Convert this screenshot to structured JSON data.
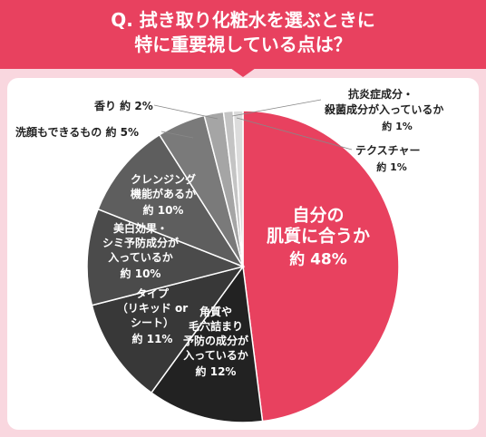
{
  "header": {
    "title_line1": "Q. 拭き取り化粧水を選ぶときに",
    "title_line2": "特に重要視している点は？"
  },
  "chart_data": {
    "type": "pie",
    "unit": "%",
    "slices": [
      {
        "lines": [
          "自分の",
          "肌質に合うか"
        ],
        "value_text": "約 48%",
        "value": 48,
        "color": "#e8415f",
        "text_color": "#ffffff"
      },
      {
        "lines": [
          "角質や",
          "毛穴詰まり",
          "予防の成分が",
          "入っているか"
        ],
        "value_text": "約 12%",
        "value": 12,
        "color": "#222222",
        "text_color": "#ffffff"
      },
      {
        "lines": [
          "タイプ",
          "（リキッド or",
          "シート）"
        ],
        "value_text": "約 11%",
        "value": 11,
        "color": "#383838",
        "text_color": "#ffffff"
      },
      {
        "lines": [
          "美白効果・",
          "シミ予防成分が",
          "入っているか"
        ],
        "value_text": "約 10%",
        "value": 10,
        "color": "#4b4b4b",
        "text_color": "#ffffff"
      },
      {
        "lines": [
          "クレンジング",
          "機能があるか"
        ],
        "value_text": "約 10%",
        "value": 10,
        "color": "#5e5e5e",
        "text_color": "#ffffff"
      },
      {
        "lines": [
          "洗顔もできるもの"
        ],
        "value_text": "約 5%",
        "value": 5,
        "color": "#7a7a7a",
        "text_color": "#222222"
      },
      {
        "lines": [
          "香り"
        ],
        "value_text": "約 2%",
        "value": 2,
        "color": "#a5a5a5",
        "text_color": "#222222"
      },
      {
        "lines": [
          "抗炎症成分・",
          "殺菌成分が入っているか"
        ],
        "value_text": "約 1%",
        "value": 1,
        "color": "#c4c4c4",
        "text_color": "#222222"
      },
      {
        "lines": [
          "テクスチャー"
        ],
        "value_text": "約 1%",
        "value": 1,
        "color": "#dcdcdc",
        "text_color": "#222222"
      }
    ]
  }
}
